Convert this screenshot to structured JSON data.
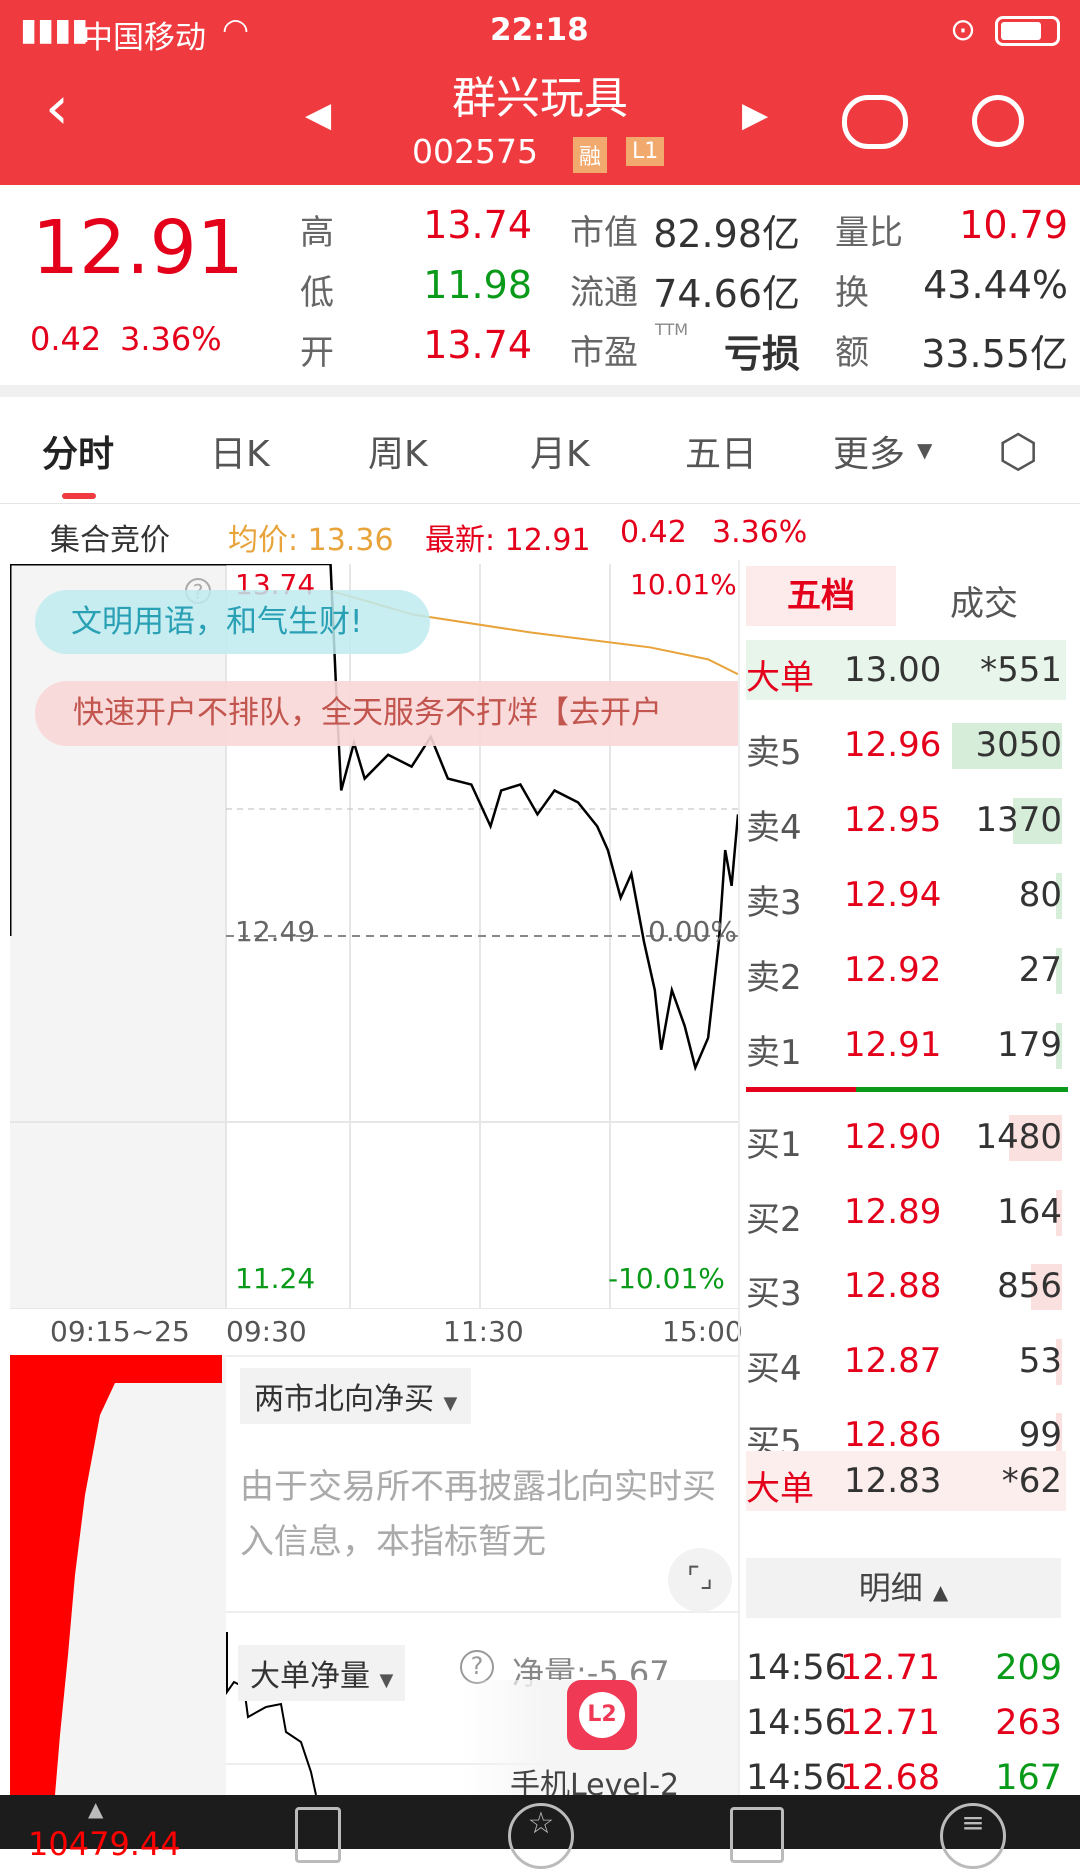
{
  "status": {
    "carrier": "中国移动",
    "time": "22:18"
  },
  "header": {
    "title": "群兴玩具",
    "code": "002575",
    "badges": [
      "融",
      "L1"
    ]
  },
  "quote": {
    "price": "12.91",
    "change": "0.42",
    "change_pct": "3.36%",
    "fields": [
      {
        "label": "高",
        "value": "13.74",
        "color": "red"
      },
      {
        "label": "低",
        "value": "11.98",
        "color": "green"
      },
      {
        "label": "开",
        "value": "13.74",
        "color": "red"
      },
      {
        "label": "市值",
        "value": "82.98亿"
      },
      {
        "label": "流通",
        "value": "74.66亿"
      },
      {
        "label": "市盈",
        "sup": "TTM",
        "value": "亏损"
      },
      {
        "label": "量比",
        "value": "10.79",
        "color": "red"
      },
      {
        "label": "换",
        "value": "43.44%"
      },
      {
        "label": "额",
        "value": "33.55亿"
      }
    ]
  },
  "tabs": [
    "分时",
    "日K",
    "周K",
    "月K",
    "五日",
    "更多"
  ],
  "info": {
    "auction": "集合竞价",
    "avg": "均价: 13.36",
    "latest": "最新: 12.91",
    "chg": "0.42",
    "pct": "3.36%"
  },
  "chart": {
    "high": "13.74",
    "low": "11.24",
    "mid": "12.49",
    "up_pct": "10.01%",
    "down_pct": "-10.01%",
    "zero_pct": "0.00%",
    "times": [
      "09:15~25",
      "09:30",
      "11:30",
      "15:00"
    ],
    "chat_bubble": "文明用语，和气生财!",
    "banner": "快速开户不排队，全天服务不打烊【去开户",
    "price_series": [
      [
        0,
        13.74
      ],
      [
        49,
        13.74
      ],
      [
        52,
        13.26
      ],
      [
        54,
        12.98
      ],
      [
        60,
        13.14
      ],
      [
        65,
        13.02
      ],
      [
        76,
        13.1
      ],
      [
        87,
        13.06
      ],
      [
        96,
        13.16
      ],
      [
        104,
        13.02
      ],
      [
        115,
        13.0
      ],
      [
        124,
        12.86
      ],
      [
        129,
        12.98
      ],
      [
        138,
        13.0
      ],
      [
        146,
        12.9
      ],
      [
        154,
        12.98
      ],
      [
        165,
        12.94
      ],
      [
        174,
        12.86
      ],
      [
        179,
        12.78
      ],
      [
        185,
        12.62
      ],
      [
        190,
        12.7
      ],
      [
        196,
        12.47
      ],
      [
        201,
        12.31
      ],
      [
        204,
        12.11
      ],
      [
        209,
        12.31
      ],
      [
        215,
        12.19
      ],
      [
        220,
        12.05
      ],
      [
        226,
        12.15
      ],
      [
        231,
        12.47
      ],
      [
        234,
        12.78
      ],
      [
        237,
        12.66
      ],
      [
        240,
        12.9
      ]
    ],
    "avg_series": [
      [
        49,
        13.65
      ],
      [
        88,
        13.57
      ],
      [
        143,
        13.51
      ],
      [
        199,
        13.46
      ],
      [
        226,
        13.42
      ],
      [
        240,
        13.37
      ]
    ]
  },
  "lower": {
    "north_select": "两市北向净买",
    "north_msg": "由于交易所不再披露北向实时买入信息，本指标暂无",
    "big_select": "大单净量",
    "net": "净量:-5.67",
    "l2": "L2",
    "l2_label": "手机Level-2"
  },
  "orderbook": {
    "tabs": [
      "五档",
      "成交"
    ],
    "big_sell": {
      "label": "大单",
      "price": "13.00",
      "vol": "*551"
    },
    "asks": [
      {
        "label": "卖5",
        "price": "12.96",
        "vol": "3050"
      },
      {
        "label": "卖4",
        "price": "12.95",
        "vol": "1370"
      },
      {
        "label": "卖3",
        "price": "12.94",
        "vol": "80"
      },
      {
        "label": "卖2",
        "price": "12.92",
        "vol": "27"
      },
      {
        "label": "卖1",
        "price": "12.91",
        "vol": "179"
      }
    ],
    "bids": [
      {
        "label": "买1",
        "price": "12.90",
        "vol": "1480"
      },
      {
        "label": "买2",
        "price": "12.89",
        "vol": "164"
      },
      {
        "label": "买3",
        "price": "12.88",
        "vol": "856"
      },
      {
        "label": "买4",
        "price": "12.87",
        "vol": "53"
      },
      {
        "label": "买5",
        "price": "12.86",
        "vol": "99"
      }
    ],
    "big_buy": {
      "label": "大单",
      "price": "12.83",
      "vol": "*62"
    },
    "detail": "明细",
    "trades": [
      {
        "t": "14:56",
        "p": "12.71",
        "v": "209",
        "c": "green"
      },
      {
        "t": "14:56",
        "p": "12.71",
        "v": "263",
        "c": "red"
      },
      {
        "t": "14:56",
        "p": "12.68",
        "v": "167",
        "c": "green"
      }
    ]
  },
  "nav": {
    "index": "10479.44"
  },
  "colors": {
    "brand": "#ef3a3f",
    "up": "#e4001b",
    "down": "#0a9a1a",
    "avg": "#e8a33a"
  }
}
